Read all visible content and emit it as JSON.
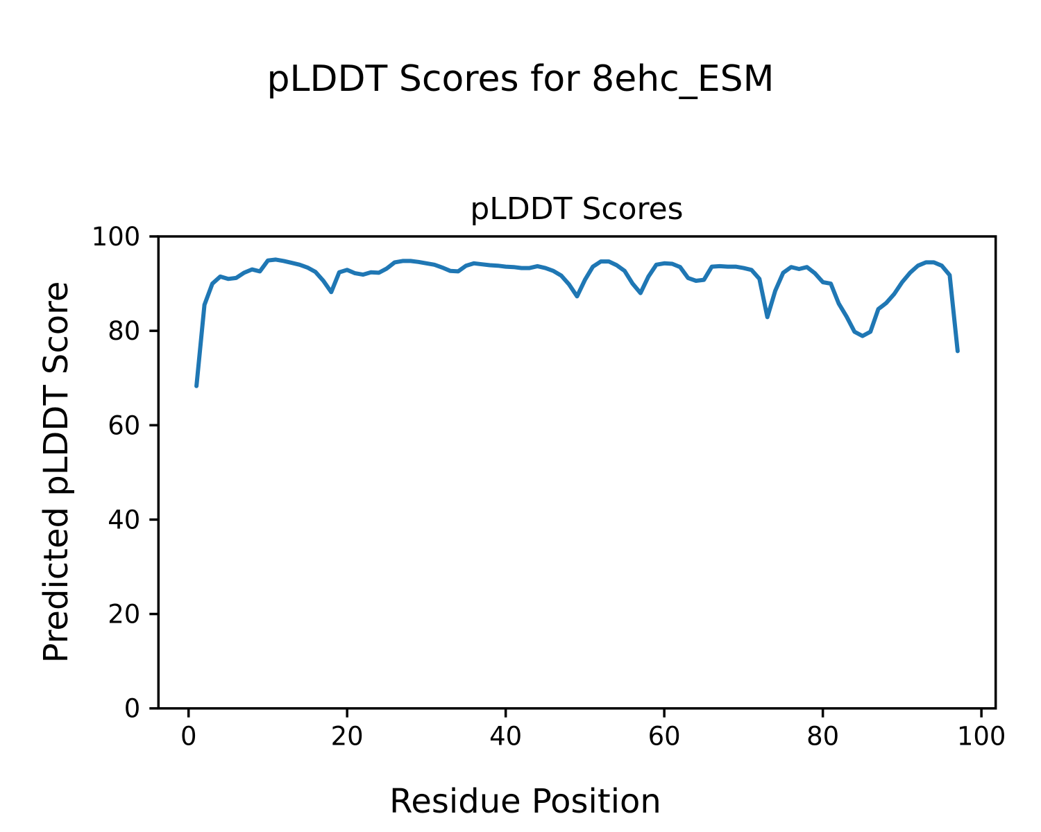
{
  "figure": {
    "suptitle": "pLDDT Scores for 8ehc_ESM",
    "background_color": "#ffffff",
    "text_color": "#000000"
  },
  "chart_data": {
    "type": "line",
    "title": "pLDDT Scores",
    "xlabel": "Residue Position",
    "ylabel": "Predicted pLDDT Score",
    "legend": null,
    "grid": false,
    "line_color": "#1f77b4",
    "line_width": 6,
    "xlim": [
      -3.8,
      101.8
    ],
    "ylim": [
      0,
      100
    ],
    "x_ticks": [
      0,
      20,
      40,
      60,
      80,
      100
    ],
    "y_ticks": [
      0,
      20,
      40,
      60,
      80,
      100
    ],
    "x": [
      1,
      2,
      3,
      4,
      5,
      6,
      7,
      8,
      9,
      10,
      11,
      12,
      13,
      14,
      15,
      16,
      17,
      18,
      19,
      20,
      21,
      22,
      23,
      24,
      25,
      26,
      27,
      28,
      29,
      30,
      31,
      32,
      33,
      34,
      35,
      36,
      37,
      38,
      39,
      40,
      41,
      42,
      43,
      44,
      45,
      46,
      47,
      48,
      49,
      50,
      51,
      52,
      53,
      54,
      55,
      56,
      57,
      58,
      59,
      60,
      61,
      62,
      63,
      64,
      65,
      66,
      67,
      68,
      69,
      70,
      71,
      72,
      73,
      74,
      75,
      76,
      77,
      78,
      79,
      80,
      81,
      82,
      83,
      84,
      85,
      86,
      87,
      88,
      89,
      90,
      91,
      92,
      93,
      94,
      95,
      96,
      97
    ],
    "values": [
      68.3,
      85.5,
      90.0,
      91.5,
      91.0,
      91.2,
      92.3,
      93.0,
      92.6,
      94.9,
      95.1,
      94.8,
      94.4,
      94.0,
      93.4,
      92.5,
      90.6,
      88.2,
      92.4,
      92.9,
      92.2,
      91.9,
      92.4,
      92.3,
      93.2,
      94.5,
      94.8,
      94.8,
      94.6,
      94.3,
      94.0,
      93.4,
      92.7,
      92.6,
      93.8,
      94.3,
      94.1,
      93.9,
      93.8,
      93.6,
      93.5,
      93.3,
      93.3,
      93.7,
      93.3,
      92.7,
      91.7,
      89.8,
      87.3,
      90.8,
      93.6,
      94.7,
      94.7,
      93.9,
      92.7,
      90.0,
      88.0,
      91.5,
      94.0,
      94.3,
      94.2,
      93.5,
      91.2,
      90.6,
      90.8,
      93.6,
      93.7,
      93.6,
      93.6,
      93.3,
      92.9,
      91.0,
      82.9,
      88.5,
      92.3,
      93.5,
      93.1,
      93.5,
      92.2,
      90.3,
      90.0,
      85.8,
      83.0,
      79.8,
      78.9,
      79.8,
      84.6,
      85.9,
      87.8,
      90.3,
      92.3,
      93.8,
      94.5,
      94.5,
      93.8,
      91.8,
      75.7
    ]
  }
}
